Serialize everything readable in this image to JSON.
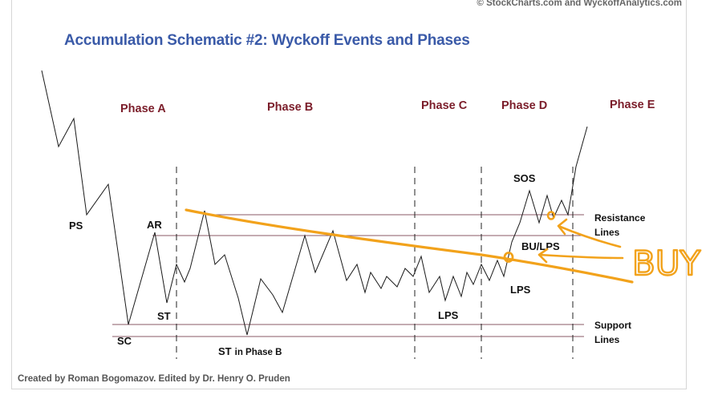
{
  "copyright": "© StockCharts.com and WyckoffAnalytics.com",
  "title": "Accumulation Schematic #2: Wyckoff Events and Phases",
  "credit": "Created by Roman Bogomazov. Edited by Dr. Henry O. Pruden",
  "phases": [
    "Phase A",
    "Phase B",
    "Phase C",
    "Phase D",
    "Phase E"
  ],
  "events": {
    "ps": "PS",
    "sc": "SC",
    "ar": "AR",
    "st": "ST",
    "st_phase_b_main": "ST",
    "st_phase_b_suffix": "in Phase B",
    "lps_c": "LPS",
    "lps_d": "LPS",
    "bu_lps": "BU/LPS",
    "sos": "SOS"
  },
  "resistance_label": [
    "Resistance",
    "Lines"
  ],
  "support_label": [
    "Support",
    "Lines"
  ],
  "annotation": {
    "text": "BUY",
    "color": "#f2a21b"
  },
  "colors": {
    "phase_label": "#7b1d2a",
    "title": "#3a5aa8",
    "level_lines": "#8a5a66",
    "annotation": "#f2a21b"
  }
}
